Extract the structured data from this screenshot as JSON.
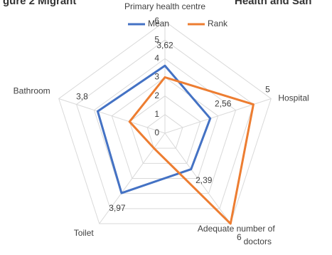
{
  "chart_data": {
    "type": "radar",
    "title_fragments": [
      "gure 2 Migrant",
      "Health and San"
    ],
    "categories": [
      "Primary health centre",
      "Hospital",
      "Adequate number of doctors",
      "Toilet",
      "Bathroom"
    ],
    "series": [
      {
        "name": "Mean",
        "color": "#4472c4",
        "values": [
          3.62,
          2.56,
          2.39,
          3.97,
          3.8
        ],
        "value_labels": [
          "3,62",
          "2,56",
          "2,39",
          "3,97",
          "3,8"
        ]
      },
      {
        "name": "Rank",
        "color": "#ed7d31",
        "values": [
          3,
          5,
          6,
          1,
          2
        ],
        "value_labels": [
          null,
          "5",
          "6",
          null,
          null
        ]
      }
    ],
    "rlim": [
      0,
      6
    ],
    "rticks": [
      0,
      1,
      2,
      3,
      4,
      5,
      6
    ],
    "grid": true,
    "legend": "top"
  }
}
